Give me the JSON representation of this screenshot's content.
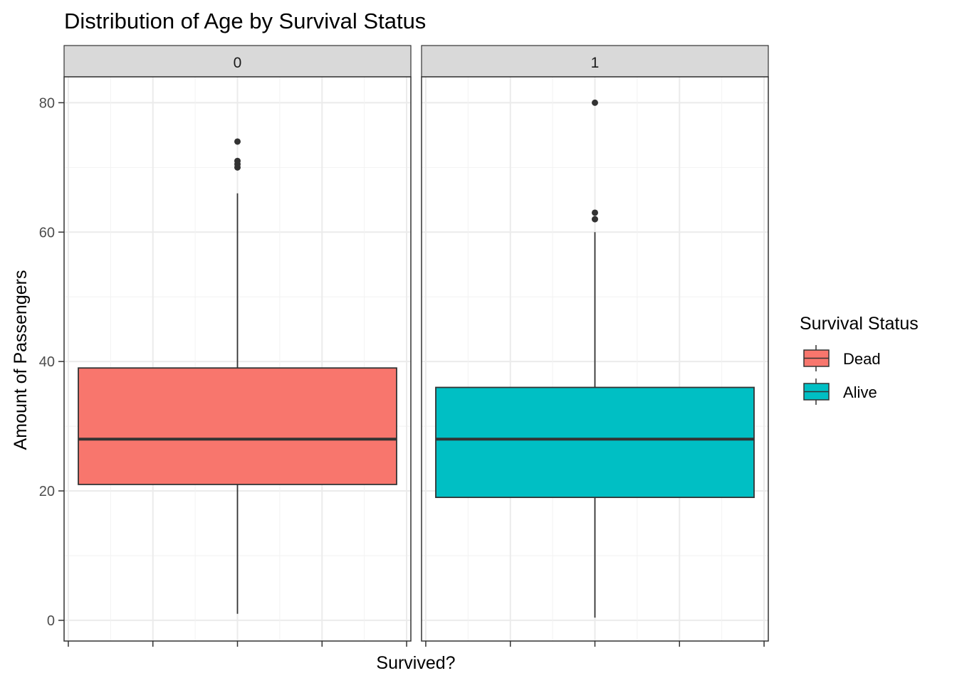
{
  "chart_data": {
    "type": "boxplot",
    "title": "Distribution of Age by Survival Status",
    "xlabel": "Survived?",
    "ylabel": "Amount of Passengers",
    "ylim": [
      -3.2,
      84
    ],
    "yticks": [
      0,
      20,
      40,
      60,
      80
    ],
    "grid": true,
    "facets": [
      {
        "label": "0",
        "series": "Dead",
        "min": 1,
        "q1": 21,
        "median": 28,
        "q3": 39,
        "max": 66,
        "outliers": [
          70,
          70.5,
          71,
          74
        ]
      },
      {
        "label": "1",
        "series": "Alive",
        "min": 0.42,
        "q1": 19,
        "median": 28,
        "q3": 36,
        "max": 60,
        "outliers": [
          62,
          63,
          80
        ]
      }
    ],
    "legend": {
      "title": "Survival Status",
      "position": "right",
      "items": [
        {
          "label": "Dead",
          "color": "#F8766D"
        },
        {
          "label": "Alive",
          "color": "#00BFC4"
        }
      ]
    }
  }
}
